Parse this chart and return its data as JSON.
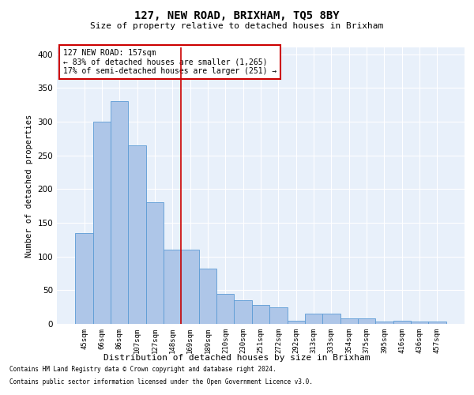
{
  "title": "127, NEW ROAD, BRIXHAM, TQ5 8BY",
  "subtitle": "Size of property relative to detached houses in Brixham",
  "xlabel": "Distribution of detached houses by size in Brixham",
  "ylabel": "Number of detached properties",
  "categories": [
    "45sqm",
    "66sqm",
    "86sqm",
    "107sqm",
    "127sqm",
    "148sqm",
    "169sqm",
    "189sqm",
    "210sqm",
    "230sqm",
    "251sqm",
    "272sqm",
    "292sqm",
    "313sqm",
    "333sqm",
    "354sqm",
    "375sqm",
    "395sqm",
    "416sqm",
    "436sqm",
    "457sqm"
  ],
  "values": [
    135,
    300,
    330,
    265,
    180,
    110,
    110,
    82,
    45,
    35,
    28,
    25,
    5,
    15,
    15,
    8,
    8,
    3,
    5,
    3,
    3
  ],
  "bar_color": "#aec6e8",
  "bar_edge_color": "#5b9bd5",
  "background_color": "#e8f0fa",
  "grid_color": "#ffffff",
  "annotation_text": "127 NEW ROAD: 157sqm\n← 83% of detached houses are smaller (1,265)\n17% of semi-detached houses are larger (251) →",
  "annotation_box_color": "#ffffff",
  "annotation_box_edge": "#cc0000",
  "footnote1": "Contains HM Land Registry data © Crown copyright and database right 2024.",
  "footnote2": "Contains public sector information licensed under the Open Government Licence v3.0.",
  "ylim": [
    0,
    410
  ],
  "yticks": [
    0,
    50,
    100,
    150,
    200,
    250,
    300,
    350,
    400
  ]
}
